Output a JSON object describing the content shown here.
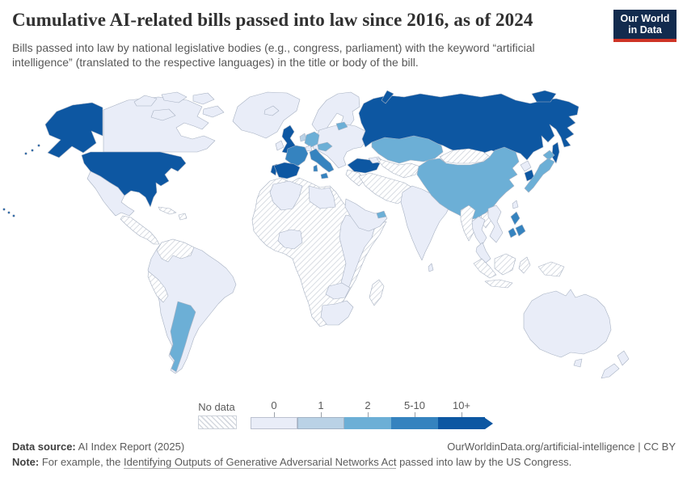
{
  "header": {
    "title": "Cumulative AI-related bills passed into law since 2016, as of 2024",
    "subtitle": "Bills passed into law by national legislative bodies (e.g., congress, parliament) with the keyword “artificial intelligence” (translated to the respective languages) in the title or body of the bill.",
    "logo": {
      "line1": "Our World",
      "line2": "in Data",
      "bg_color": "#122b4e",
      "accent_color": "#cf3426"
    }
  },
  "legend": {
    "no_data_label": "No data",
    "bins": [
      {
        "label": "0",
        "color": "#e9edf8"
      },
      {
        "label": "1",
        "color": "#bad2e6"
      },
      {
        "label": "2",
        "color": "#6cafd6"
      },
      {
        "label": "5-10",
        "color": "#3583bf"
      },
      {
        "label": "10+",
        "color": "#0d57a2"
      }
    ]
  },
  "footer": {
    "source_label": "Data source:",
    "source_value": " AI Index Report (2025)",
    "attribution": "OurWorldinData.org/artificial-intelligence | CC BY",
    "note_label": "Note:",
    "note_before_link": " For example, the ",
    "note_link": "Identifying Outputs of Generative Adversarial Networks Act",
    "note_after_link": " passed into law by the US Congress."
  },
  "chart_data": {
    "type": "choropleth",
    "title": "Cumulative AI-related bills passed into law since 2016, as of 2024",
    "unit": "bills passed into law",
    "bins": [
      "No data",
      "0",
      "1",
      "2",
      "5-10",
      "10+"
    ],
    "legend_position": "bottom",
    "no_data_style": "diagonal-hatch",
    "countries": {
      "united-states": "10+",
      "canada": "0",
      "greenland": "0",
      "mexico": "0",
      "central-america": "No data",
      "cuba": "No data",
      "south-america-base": "0",
      "brazil": "0",
      "chile": "0",
      "bolivia": "0",
      "colombia-venezuela": "No data",
      "peru-ecuador": "No data",
      "argentina": "2",
      "iceland": "0",
      "scandinavia": "0",
      "denmark": "1",
      "united-kingdom": "10+",
      "ireland": "0",
      "netherlands": "1",
      "germany": "2",
      "switzerland": "0",
      "austria-hungary": "2",
      "baltic-states": "2",
      "eastern-europe": "0",
      "france": "5-10",
      "spain": "10+",
      "portugal": "10+",
      "italy": "5-10",
      "greece": "0",
      "turkey": "10+",
      "caucasus": "0",
      "russia": "10+",
      "kazakhstan": "2",
      "central-asia": "No data",
      "iran": "No data",
      "iraq-syria": "No data",
      "saudi-arabia": "0",
      "united-arab-emirates": "2",
      "india": "0",
      "sri-lanka": "0",
      "china": "2",
      "mongolia": "No data",
      "north-korea": "0",
      "south-korea": "10+",
      "japan": "2",
      "taiwan": "0",
      "myanmar": "No data",
      "laos": "No data",
      "thailand": "0",
      "vietnam": "0",
      "malaysia": "0",
      "philippines": "5-10",
      "indonesia": "No data",
      "papua-new-guinea": "No data",
      "australia": "0",
      "new-zealand": "0",
      "africa-base": "No data",
      "morocco": "No data",
      "algeria": "0",
      "egypt": "0",
      "nigeria": "0",
      "east-africa": "0",
      "zambia-zimbabwe": "0",
      "south-africa": "0",
      "madagascar": "No data"
    }
  }
}
